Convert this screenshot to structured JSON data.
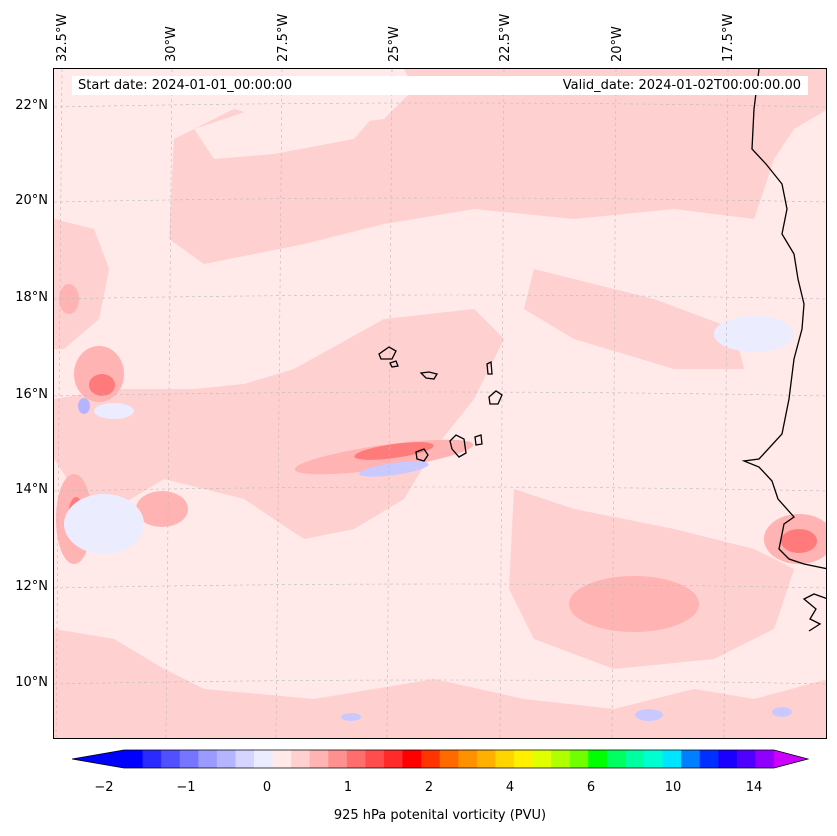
{
  "banners": {
    "start": "Start date: 2024-01-01_00:00:00",
    "valid": "Valid_date: 2024-01-02T00:00:00.00"
  },
  "map": {
    "longitude_labels": [
      "32.5°W",
      "30°W",
      "27.5°W",
      "25°W",
      "22.5°W",
      "20°W",
      "17.5°W"
    ],
    "latitude_labels": [
      "22°N",
      "20°N",
      "18°N",
      "16°N",
      "14°N",
      "12°N",
      "10°N"
    ],
    "gridlines": "dashed light gray",
    "background_color": "#ffe9e9"
  },
  "colorbar": {
    "title": "925 hPa potenital vorticity (PVU)",
    "tick_labels": [
      "−2",
      "−1",
      "0",
      "1",
      "2",
      "4",
      "6",
      "10",
      "14"
    ],
    "colors": [
      "#0000ff",
      "#2a2aff",
      "#5050ff",
      "#7575ff",
      "#9a9aff",
      "#b4b4ff",
      "#d5d5ff",
      "#ececff",
      "#ffe9e9",
      "#ffd0d0",
      "#ffb3b3",
      "#ff9090",
      "#ff6e6e",
      "#ff4c4c",
      "#ff2a2a",
      "#ff0000",
      "#ff3500",
      "#ff6a00",
      "#ff9000",
      "#ffb000",
      "#ffd500",
      "#fff000",
      "#e0ff00",
      "#b0ff00",
      "#70ff00",
      "#00ff00",
      "#00ff60",
      "#00ffa0",
      "#00ffd0",
      "#00e5ff",
      "#0080ff",
      "#0030ff",
      "#1a00ff",
      "#5000ff",
      "#9000ff"
    ],
    "extend_left_color": "#0000ff",
    "extend_right_color": "#cc00ff"
  }
}
